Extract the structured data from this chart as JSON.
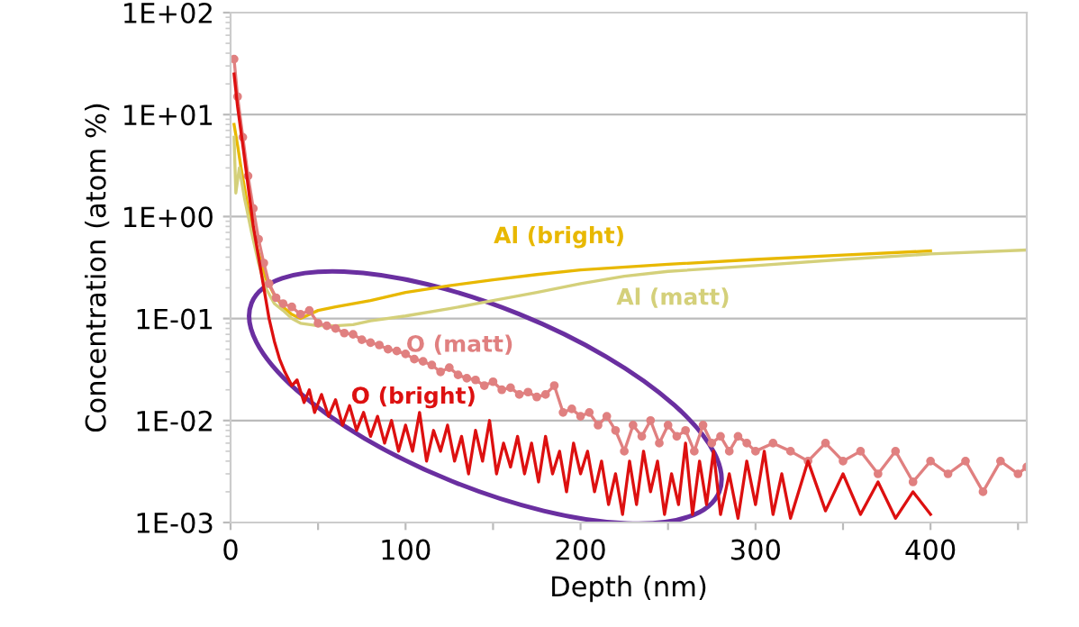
{
  "chart_data": {
    "type": "line",
    "xlabel": "Depth (nm)",
    "ylabel": "Concentration (atom %)",
    "log": "y",
    "grid": "y",
    "legend": false,
    "marker": "none",
    "xlim": [
      0,
      455
    ],
    "xticks": [
      0,
      {
        "value": 50,
        "label": null
      },
      100,
      {
        "value": 150,
        "label": null
      },
      200,
      {
        "value": 250,
        "label": null
      },
      300,
      {
        "value": 350,
        "label": null
      },
      400,
      {
        "value": 450,
        "label": null
      }
    ],
    "ylim": [
      0.001,
      100
    ],
    "yticks": [
      {
        "value": 0.001,
        "label": "1E-03"
      },
      {
        "value": 0.01,
        "label": "1E-02"
      },
      {
        "value": 0.1,
        "label": "1E-01"
      },
      {
        "value": 1,
        "label": "1E+00"
      },
      {
        "value": 10,
        "label": "1E+01"
      },
      {
        "value": 100,
        "label": "1E+02"
      }
    ],
    "series": [
      {
        "name": "Al (bright)",
        "color": "#e8b800",
        "x": [
          2,
          4,
          6,
          10,
          15,
          20,
          25,
          30,
          35,
          40,
          50,
          60,
          80,
          100,
          125,
          150,
          175,
          200,
          250,
          300,
          350,
          400
        ],
        "values": [
          8,
          5,
          3,
          1.2,
          0.5,
          0.25,
          0.17,
          0.13,
          0.11,
          0.1,
          0.12,
          0.13,
          0.15,
          0.18,
          0.21,
          0.24,
          0.27,
          0.3,
          0.34,
          0.38,
          0.42,
          0.46
        ]
      },
      {
        "name": "Al (matt)",
        "color": "#d4d07a",
        "x": [
          2,
          3,
          5,
          8,
          12,
          16,
          20,
          25,
          30,
          35,
          40,
          50,
          60,
          70,
          80,
          100,
          125,
          150,
          175,
          200,
          225,
          250,
          300,
          350,
          400,
          455
        ],
        "values": [
          6,
          1.7,
          3,
          1.5,
          0.7,
          0.35,
          0.2,
          0.14,
          0.12,
          0.1,
          0.09,
          0.085,
          0.085,
          0.087,
          0.095,
          0.106,
          0.125,
          0.15,
          0.18,
          0.22,
          0.26,
          0.29,
          0.33,
          0.38,
          0.43,
          0.47
        ]
      },
      {
        "name": "O (matt)",
        "color": "#e08080",
        "marker": "circle",
        "x": [
          2,
          4,
          7,
          10,
          13,
          16,
          19,
          22,
          26,
          30,
          35,
          40,
          45,
          50,
          55,
          60,
          65,
          70,
          75,
          80,
          85,
          90,
          95,
          100,
          105,
          110,
          115,
          120,
          125,
          130,
          135,
          140,
          145,
          150,
          155,
          160,
          165,
          170,
          175,
          180,
          185,
          190,
          195,
          200,
          205,
          210,
          215,
          220,
          225,
          230,
          235,
          240,
          245,
          250,
          255,
          260,
          265,
          270,
          275,
          280,
          285,
          290,
          295,
          300,
          310,
          320,
          330,
          340,
          350,
          360,
          370,
          380,
          390,
          400,
          410,
          420,
          430,
          440,
          450,
          455
        ],
        "values": [
          35,
          15,
          6,
          2.5,
          1.2,
          0.6,
          0.35,
          0.22,
          0.16,
          0.14,
          0.13,
          0.11,
          0.12,
          0.09,
          0.085,
          0.08,
          0.072,
          0.07,
          0.062,
          0.058,
          0.055,
          0.05,
          0.048,
          0.045,
          0.04,
          0.038,
          0.035,
          0.03,
          0.033,
          0.028,
          0.026,
          0.025,
          0.022,
          0.024,
          0.02,
          0.021,
          0.018,
          0.019,
          0.017,
          0.018,
          0.022,
          0.012,
          0.013,
          0.011,
          0.012,
          0.009,
          0.011,
          0.008,
          0.005,
          0.009,
          0.007,
          0.01,
          0.006,
          0.009,
          0.007,
          0.008,
          0.005,
          0.009,
          0.006,
          0.007,
          0.005,
          0.007,
          0.006,
          0.005,
          0.006,
          0.005,
          0.004,
          0.006,
          0.004,
          0.005,
          0.003,
          0.005,
          0.0025,
          0.004,
          0.003,
          0.004,
          0.002,
          0.004,
          0.003,
          0.0035
        ]
      },
      {
        "name": "O (bright)",
        "color": "#dd1010",
        "x": [
          2,
          4,
          7,
          10,
          13,
          16,
          19,
          22,
          25,
          28,
          31,
          35,
          38,
          42,
          45,
          48,
          52,
          56,
          60,
          64,
          68,
          72,
          76,
          80,
          84,
          88,
          92,
          96,
          100,
          104,
          108,
          112,
          116,
          120,
          124,
          128,
          132,
          136,
          140,
          144,
          148,
          152,
          156,
          160,
          164,
          168,
          172,
          176,
          180,
          184,
          188,
          192,
          196,
          200,
          204,
          208,
          212,
          216,
          220,
          224,
          228,
          232,
          236,
          240,
          244,
          248,
          252,
          256,
          260,
          264,
          268,
          272,
          276,
          280,
          285,
          290,
          295,
          300,
          305,
          310,
          315,
          320,
          330,
          340,
          350,
          360,
          370,
          380,
          390,
          400
        ],
        "values": [
          25,
          12,
          5,
          2,
          0.8,
          0.4,
          0.2,
          0.1,
          0.06,
          0.04,
          0.03,
          0.022,
          0.025,
          0.015,
          0.02,
          0.012,
          0.018,
          0.011,
          0.016,
          0.009,
          0.014,
          0.008,
          0.012,
          0.007,
          0.011,
          0.006,
          0.01,
          0.005,
          0.009,
          0.005,
          0.012,
          0.004,
          0.008,
          0.005,
          0.009,
          0.004,
          0.007,
          0.003,
          0.008,
          0.004,
          0.01,
          0.003,
          0.006,
          0.0035,
          0.007,
          0.003,
          0.006,
          0.0025,
          0.007,
          0.003,
          0.005,
          0.002,
          0.006,
          0.003,
          0.005,
          0.002,
          0.004,
          0.0015,
          0.003,
          0.0012,
          0.004,
          0.0015,
          0.005,
          0.002,
          0.004,
          0.0012,
          0.003,
          0.0015,
          0.006,
          0.0012,
          0.004,
          0.0015,
          0.005,
          0.0012,
          0.003,
          0.0011,
          0.004,
          0.0015,
          0.005,
          0.0012,
          0.003,
          0.0011,
          0.004,
          0.0013,
          0.003,
          0.0012,
          0.0025,
          0.0011,
          0.002,
          0.0012
        ]
      }
    ]
  }
}
